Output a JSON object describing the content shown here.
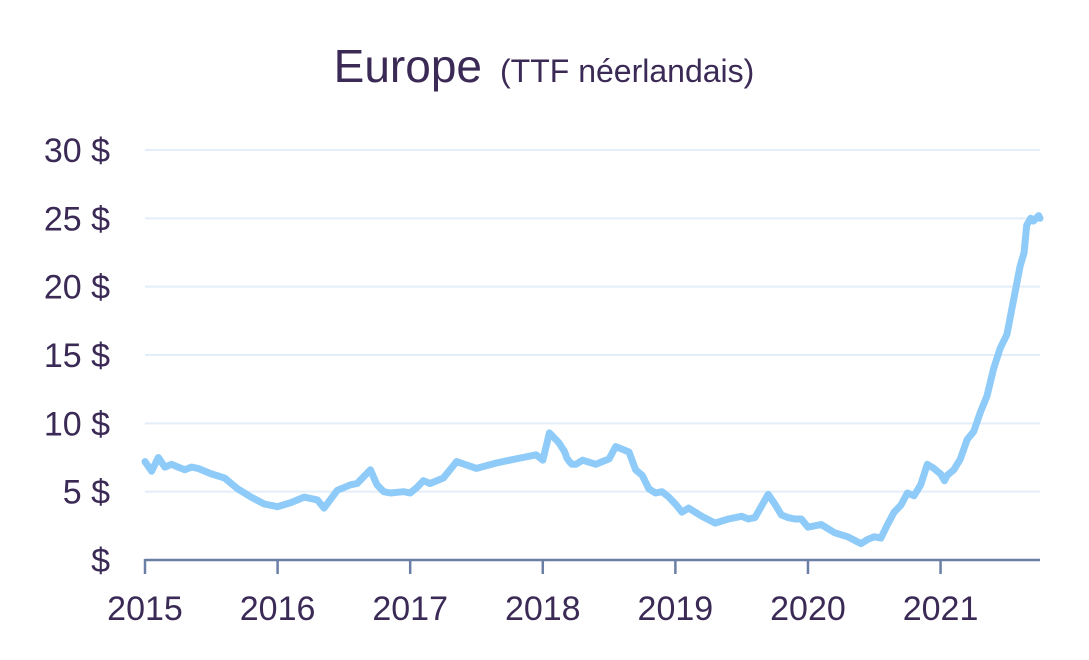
{
  "chart_data": {
    "type": "line",
    "title": "Europe",
    "subtitle": "(TTF néerlandais)",
    "xlabel": "",
    "ylabel": "",
    "ylim": [
      0,
      30
    ],
    "xlim": [
      2015.0,
      2021.75
    ],
    "yticks": [
      0,
      5,
      10,
      15,
      20,
      25,
      30
    ],
    "ytick_labels": [
      "$",
      "5 $",
      "10 $",
      "15 $",
      "20 $",
      "25 $",
      "30 $"
    ],
    "xticks": [
      2015,
      2016,
      2017,
      2018,
      2019,
      2020,
      2021
    ],
    "xtick_labels": [
      "2015",
      "2016",
      "2017",
      "2018",
      "2019",
      "2020",
      "2021"
    ],
    "grid": true,
    "legend": "none",
    "series_color": "#8fcbf8",
    "series": [
      {
        "x": [
          2015.0,
          2015.05,
          2015.1,
          2015.15,
          2015.2,
          2015.25,
          2015.3,
          2015.35,
          2015.4,
          2015.5,
          2015.6,
          2015.7,
          2015.8,
          2015.9,
          2016.0,
          2016.1,
          2016.2,
          2016.3,
          2016.35,
          2016.45,
          2016.55,
          2016.6,
          2016.7,
          2016.75,
          2016.8,
          2016.85,
          2016.95,
          2017.0,
          2017.05,
          2017.1,
          2017.15,
          2017.25,
          2017.3,
          2017.35,
          2017.5,
          2017.65,
          2017.75,
          2017.85,
          2017.95,
          2018.0,
          2018.05,
          2018.12,
          2018.16,
          2018.17,
          2018.18,
          2018.2,
          2018.22,
          2018.25,
          2018.3,
          2018.4,
          2018.5,
          2018.55,
          2018.6,
          2018.65,
          2018.7,
          2018.75,
          2018.8,
          2018.85,
          2018.9,
          2018.95,
          2019.0,
          2019.05,
          2019.1,
          2019.2,
          2019.3,
          2019.4,
          2019.5,
          2019.55,
          2019.6,
          2019.7,
          2019.75,
          2019.8,
          2019.85,
          2019.9,
          2019.95,
          2020.0,
          2020.1,
          2020.2,
          2020.3,
          2020.4,
          2020.45,
          2020.5,
          2020.55,
          2020.6,
          2020.65,
          2020.7,
          2020.75,
          2020.8,
          2020.85,
          2020.9,
          2020.95,
          2021.0,
          2021.03,
          2021.05,
          2021.1,
          2021.15,
          2021.2,
          2021.25,
          2021.3,
          2021.35,
          2021.4,
          2021.45,
          2021.5,
          2021.55,
          2021.6,
          2021.63,
          2021.65,
          2021.68,
          2021.7,
          2021.72,
          2021.74,
          2021.75
        ],
        "y": [
          7.2,
          6.5,
          7.5,
          6.8,
          7.0,
          6.8,
          6.6,
          6.8,
          6.7,
          6.3,
          6.0,
          5.2,
          4.6,
          4.1,
          3.9,
          4.2,
          4.6,
          4.4,
          3.8,
          5.1,
          5.5,
          5.6,
          6.6,
          5.5,
          5.0,
          4.9,
          5.0,
          4.9,
          5.3,
          5.8,
          5.6,
          6.0,
          6.6,
          7.2,
          6.7,
          7.1,
          7.3,
          7.5,
          7.7,
          7.3,
          9.3,
          8.6,
          8.0,
          7.8,
          7.5,
          7.2,
          7.0,
          7.0,
          7.3,
          7.0,
          7.4,
          8.3,
          8.1,
          7.9,
          6.6,
          6.2,
          5.2,
          4.9,
          5.0,
          4.6,
          4.1,
          3.5,
          3.8,
          3.2,
          2.7,
          3.0,
          3.2,
          3.0,
          3.1,
          4.8,
          4.1,
          3.3,
          3.1,
          3.0,
          3.0,
          2.4,
          2.6,
          2.0,
          1.7,
          1.2,
          1.5,
          1.7,
          1.6,
          2.6,
          3.5,
          4.0,
          4.9,
          4.7,
          5.5,
          7.0,
          6.7,
          6.3,
          5.8,
          6.2,
          6.6,
          7.4,
          8.8,
          9.4,
          10.8,
          12.0,
          14.0,
          15.5,
          16.5,
          19.0,
          21.5,
          22.5,
          24.5,
          25.0,
          24.8,
          25.0,
          25.2,
          25.0
        ]
      }
    ]
  }
}
